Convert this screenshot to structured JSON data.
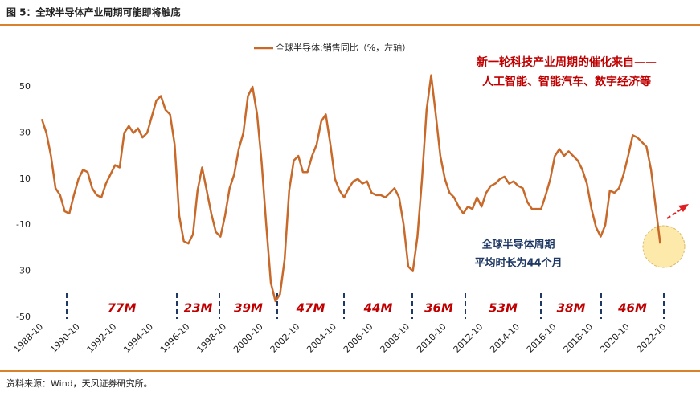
{
  "chart_data": {
    "type": "line",
    "title": "图 5：全球半导体产业周期可能即将触底",
    "source": "资料来源：Wind，天风证券研究所。",
    "annotations": [
      "新一轮科技产业周期的催化来自——",
      "人工智能、智能汽车、数字经济等",
      "全球半导体周期",
      "平均时长为44个月"
    ],
    "cycles": [
      "77M",
      "23M",
      "39M",
      "47M",
      "44M",
      "36M",
      "53M",
      "38M",
      "46M"
    ],
    "x": [
      "1988-10",
      "1989-01",
      "1989-04",
      "1989-07",
      "1989-10",
      "1990-01",
      "1990-04",
      "1990-07",
      "1990-10",
      "1991-01",
      "1991-04",
      "1991-07",
      "1991-10",
      "1992-01",
      "1992-04",
      "1992-07",
      "1992-10",
      "1993-01",
      "1993-04",
      "1993-07",
      "1993-10",
      "1994-01",
      "1994-04",
      "1994-07",
      "1994-10",
      "1995-01",
      "1995-04",
      "1995-07",
      "1995-10",
      "1996-01",
      "1996-04",
      "1996-07",
      "1996-10",
      "1997-01",
      "1997-04",
      "1997-07",
      "1997-10",
      "1998-01",
      "1998-04",
      "1998-07",
      "1998-10",
      "1999-01",
      "1999-04",
      "1999-07",
      "1999-10",
      "2000-01",
      "2000-04",
      "2000-07",
      "2000-10",
      "2001-01",
      "2001-04",
      "2001-07",
      "2001-10",
      "2002-01",
      "2002-04",
      "2002-07",
      "2002-10",
      "2003-01",
      "2003-04",
      "2003-07",
      "2003-10",
      "2004-01",
      "2004-04",
      "2004-07",
      "2004-10",
      "2005-01",
      "2005-04",
      "2005-07",
      "2005-10",
      "2006-01",
      "2006-04",
      "2006-07",
      "2006-10",
      "2007-01",
      "2007-04",
      "2007-07",
      "2007-10",
      "2008-01",
      "2008-04",
      "2008-07",
      "2008-10",
      "2009-01",
      "2009-04",
      "2009-07",
      "2009-10",
      "2010-01",
      "2010-04",
      "2010-07",
      "2010-10",
      "2011-01",
      "2011-04",
      "2011-07",
      "2011-10",
      "2012-01",
      "2012-04",
      "2012-07",
      "2012-10",
      "2013-01",
      "2013-04",
      "2013-07",
      "2013-10",
      "2014-01",
      "2014-04",
      "2014-07",
      "2014-10",
      "2015-01",
      "2015-04",
      "2015-07",
      "2015-10",
      "2016-01",
      "2016-04",
      "2016-07",
      "2016-10",
      "2017-01",
      "2017-04",
      "2017-07",
      "2017-10",
      "2018-01",
      "2018-04",
      "2018-07",
      "2018-10",
      "2019-01",
      "2019-04",
      "2019-07",
      "2019-10",
      "2020-01",
      "2020-04",
      "2020-07",
      "2020-10",
      "2021-01",
      "2021-04",
      "2021-07",
      "2021-10",
      "2022-01",
      "2022-04",
      "2022-07"
    ],
    "series": [
      {
        "name": "全球半导体:销售同比（%，左轴）",
        "color": "#c8692a",
        "values": [
          36,
          30,
          20,
          6,
          3,
          -4,
          -5,
          3,
          10,
          14,
          13,
          6,
          3,
          2,
          8,
          12,
          16,
          15,
          30,
          33,
          30,
          32,
          28,
          30,
          37,
          44,
          46,
          40,
          38,
          25,
          -6,
          -17,
          -18,
          -14,
          5,
          15,
          5,
          -5,
          -13,
          -15,
          -6,
          6,
          12,
          23,
          30,
          46,
          50,
          38,
          17,
          -10,
          -35,
          -43,
          -40,
          -25,
          5,
          18,
          20,
          13,
          13,
          20,
          25,
          35,
          38,
          25,
          10,
          5,
          2,
          6,
          9,
          10,
          8,
          9,
          4,
          3,
          3,
          2,
          4,
          6,
          2,
          -10,
          -28,
          -30,
          -15,
          10,
          40,
          55,
          38,
          20,
          10,
          4,
          2,
          -2,
          -5,
          -2,
          -3,
          2,
          -2,
          4,
          7,
          8,
          10,
          11,
          8,
          9,
          7,
          6,
          0,
          -3,
          -3,
          -3,
          3,
          10,
          20,
          23,
          20,
          22,
          20,
          18,
          14,
          8,
          -3,
          -11,
          -15,
          -10,
          5,
          4,
          6,
          12,
          20,
          29,
          28,
          26,
          24,
          14,
          -2,
          -18
        ]
      }
    ],
    "xticks": [
      "1988-10",
      "1990-10",
      "1992-10",
      "1994-10",
      "1996-10",
      "1998-10",
      "2000-10",
      "2002-10",
      "2004-10",
      "2006-10",
      "2008-10",
      "2010-10",
      "2012-10",
      "2014-10",
      "2016-10",
      "2018-10",
      "2020-10",
      "2022-10"
    ],
    "ylim": [
      -50,
      65
    ],
    "yticks": [
      -50,
      -30,
      -10,
      10,
      30,
      50
    ]
  }
}
